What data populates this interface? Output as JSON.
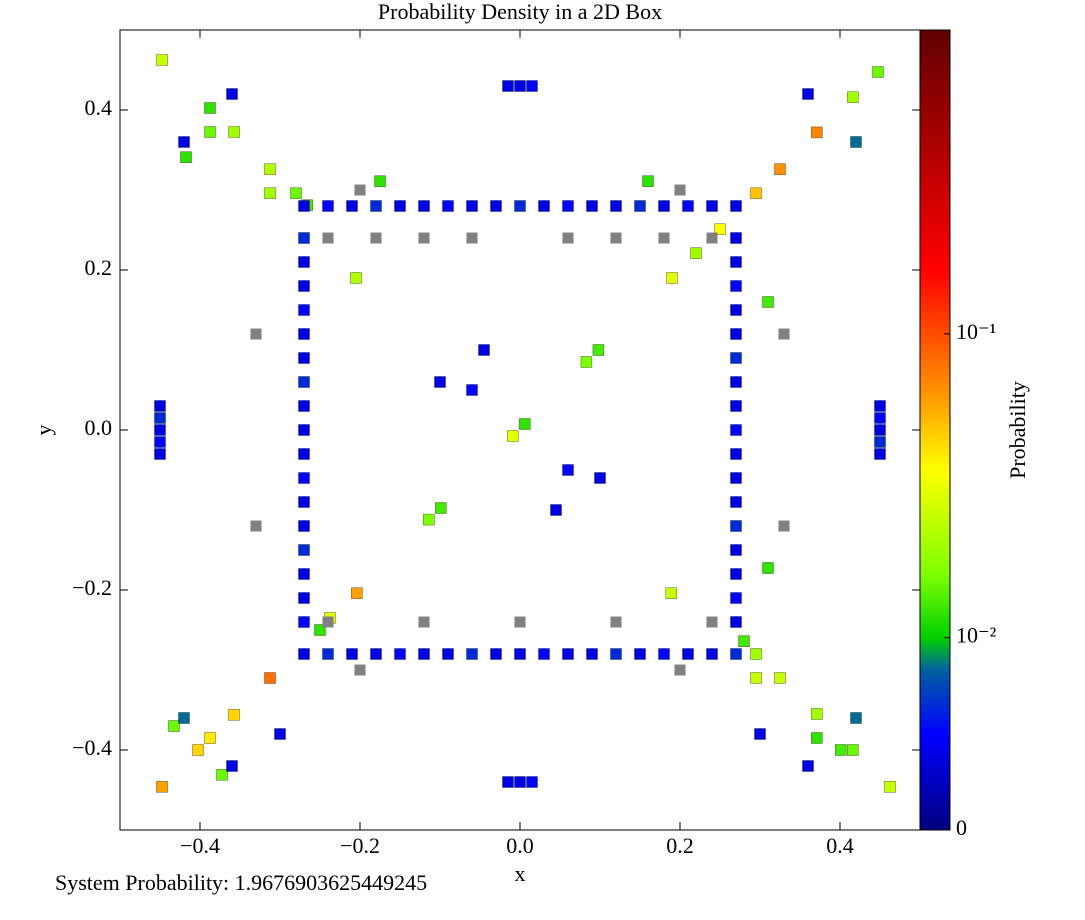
{
  "chart_data": {
    "type": "heatmap",
    "title": "Probability Density in a 2D Box",
    "xlabel": "x",
    "ylabel": "y",
    "colorbar_label": "Probability",
    "footer": "System Probability: 1.9676903625449245",
    "xlim": [
      -0.5,
      0.5
    ],
    "ylim": [
      -0.5,
      0.5
    ],
    "xticks": [
      {
        "value": -0.4,
        "label": "−0.4"
      },
      {
        "value": -0.2,
        "label": "−0.2"
      },
      {
        "value": 0,
        "label": "0.0"
      },
      {
        "value": 0.2,
        "label": "0.2"
      },
      {
        "value": 0.4,
        "label": "0.4"
      }
    ],
    "yticks": [
      {
        "value": -0.4,
        "label": "−0.4"
      },
      {
        "value": -0.2,
        "label": "−0.2"
      },
      {
        "value": 0,
        "label": "0.0"
      },
      {
        "value": 0.2,
        "label": "0.2"
      },
      {
        "value": 0.4,
        "label": "0.4"
      }
    ],
    "color_scale": "symlog",
    "linthresh": 0.0024,
    "clim": [
      0,
      1
    ],
    "cticks": [
      {
        "value": 0,
        "label": "0"
      },
      {
        "value": 0.01,
        "label": "10⁻²"
      },
      {
        "value": 0.1,
        "label": "10⁻¹"
      }
    ],
    "zero_color": "#808080",
    "colormap": [
      [
        0,
        "#000080"
      ],
      [
        0.12,
        "#0000ff"
      ],
      [
        0.2,
        "#0060a0"
      ],
      [
        0.24,
        "#00d000"
      ],
      [
        0.32,
        "#80ff00"
      ],
      [
        0.45,
        "#ffff00"
      ],
      [
        0.55,
        "#ff9000"
      ],
      [
        0.7,
        "#ff0000"
      ],
      [
        1,
        "#600000"
      ]
    ],
    "x": [
      -0.009,
      0.006,
      0.19,
      0.098,
      0.083,
      -0.099,
      -0.114,
      -0.204,
      -0.3125,
      0.325,
      0.371,
      0.295,
      0.25,
      -0.4475,
      -0.4025,
      -0.3575,
      -0.3875,
      -0.4475,
      -0.2375,
      -0.25,
      0.4475,
      0.416,
      -0.3875,
      -0.3125,
      -0.3125,
      -0.28,
      -0.266,
      0.16,
      0.22,
      0.31,
      0.31,
      0.189,
      0.28,
      0.295,
      0.325,
      0.295,
      0.371,
      0.371,
      0.401,
      0.416,
      0.4625,
      -0.4325,
      -0.3725,
      -0.4175,
      -0.3575,
      -0.3875,
      -0.205,
      -0.175,
      -0.27,
      -0.24,
      -0.21,
      -0.18,
      -0.15,
      -0.12,
      -0.09,
      -0.06,
      -0.03,
      0,
      0.03,
      0.06,
      0.09,
      0.12,
      0.15,
      0.18,
      0.21,
      0.24,
      0.27,
      -0.27,
      -0.24,
      -0.21,
      -0.18,
      -0.15,
      -0.12,
      -0.09,
      -0.06,
      -0.03,
      0,
      0.03,
      0.06,
      0.09,
      0.12,
      0.15,
      0.18,
      0.21,
      0.24,
      0.27,
      -0.27,
      -0.27,
      -0.27,
      -0.27,
      -0.27,
      -0.27,
      -0.27,
      -0.27,
      -0.27,
      -0.27,
      -0.27,
      -0.27,
      -0.27,
      -0.27,
      -0.27,
      -0.27,
      -0.27,
      0.27,
      0.27,
      0.27,
      0.27,
      0.27,
      0.27,
      0.27,
      0.27,
      0.27,
      0.27,
      0.27,
      0.27,
      0.27,
      0.27,
      0.27,
      0.27,
      0.27,
      -0.45,
      -0.45,
      -0.45,
      -0.45,
      -0.45,
      0.45,
      0.45,
      0.45,
      0.45,
      0.45,
      0,
      0.015,
      -0.015,
      0,
      0.015,
      -0.015,
      -0.42,
      -0.36,
      -0.3,
      0.3,
      0.36,
      0.42,
      -0.42,
      -0.36,
      0.36,
      0.42,
      -0.24,
      -0.18,
      -0.12,
      -0.06,
      0.06,
      0.12,
      0.18,
      0.24,
      -0.24,
      -0.12,
      0,
      0.12,
      0.24,
      -0.33,
      -0.33,
      0.33,
      0.33,
      -0.06,
      0.06,
      -0.045,
      0.045,
      -0.1,
      0.1,
      -0.2,
      0.2,
      -0.2,
      0.2
    ],
    "y": [
      -0.0075,
      0.0075,
      0.19,
      0.1,
      0.085,
      -0.0975,
      -0.112,
      -0.204,
      -0.31,
      0.326,
      0.372,
      0.296,
      0.251,
      -0.446,
      -0.4,
      -0.356,
      -0.385,
      0.4625,
      -0.235,
      -0.25,
      0.4475,
      0.416,
      0.4025,
      0.326,
      0.296,
      0.296,
      0.281,
      0.311,
      0.221,
      0.16,
      -0.1725,
      -0.204,
      -0.264,
      -0.28,
      -0.31,
      -0.31,
      -0.355,
      -0.385,
      -0.4,
      -0.4,
      -0.446,
      -0.37,
      -0.431,
      0.341,
      0.3725,
      0.3725,
      0.19,
      0.311,
      0.28,
      0.28,
      0.28,
      0.28,
      0.28,
      0.28,
      0.28,
      0.28,
      0.28,
      0.28,
      0.28,
      0.28,
      0.28,
      0.28,
      0.28,
      0.28,
      0.28,
      0.28,
      0.28,
      -0.28,
      -0.28,
      -0.28,
      -0.28,
      -0.28,
      -0.28,
      -0.28,
      -0.28,
      -0.28,
      -0.28,
      -0.28,
      -0.28,
      -0.28,
      -0.28,
      -0.28,
      -0.28,
      -0.28,
      -0.28,
      -0.28,
      -0.24,
      -0.21,
      -0.18,
      -0.15,
      -0.12,
      -0.09,
      -0.06,
      -0.03,
      0,
      0.03,
      0.06,
      0.09,
      0.12,
      0.15,
      0.18,
      0.21,
      0.24,
      -0.24,
      -0.21,
      -0.18,
      -0.15,
      -0.12,
      -0.09,
      -0.06,
      -0.03,
      0,
      0.03,
      0.06,
      0.09,
      0.12,
      0.15,
      0.18,
      0.21,
      0.24,
      -0.03,
      -0.015,
      0,
      0.015,
      0.03,
      -0.03,
      -0.015,
      0,
      0.015,
      0.03,
      0.43,
      0.43,
      0.43,
      -0.44,
      -0.44,
      -0.44,
      -0.36,
      -0.42,
      -0.38,
      -0.38,
      -0.42,
      -0.36,
      0.36,
      0.42,
      0.42,
      0.36,
      0.24,
      0.24,
      0.24,
      0.24,
      0.24,
      0.24,
      0.24,
      0.24,
      -0.24,
      -0.24,
      -0.24,
      -0.24,
      -0.24,
      0.12,
      -0.12,
      0.12,
      -0.12,
      0.05,
      -0.05,
      0.1,
      -0.1,
      0.06,
      -0.06,
      0.3,
      0.3,
      -0.3,
      -0.3
    ],
    "values": [
      0.03,
      0.012,
      0.03,
      0.013,
      0.016,
      0.013,
      0.016,
      0.06,
      0.08,
      0.065,
      0.07,
      0.05,
      0.035,
      0.06,
      0.045,
      0.045,
      0.04,
      0.025,
      0.03,
      0.012,
      0.015,
      0.02,
      0.012,
      0.022,
      0.02,
      0.015,
      0.013,
      0.012,
      0.02,
      0.013,
      0.012,
      0.025,
      0.013,
      0.02,
      0.025,
      0.025,
      0.02,
      0.012,
      0.013,
      0.015,
      0.025,
      0.015,
      0.015,
      0.012,
      0.02,
      0.015,
      0.022,
      0.012,
      0.004,
      0.005,
      0.004,
      0.006,
      0.004,
      0.004,
      0.005,
      0.004,
      0.004,
      0.006,
      0.004,
      0.005,
      0.004,
      0.004,
      0.006,
      0.004,
      0.005,
      0.004,
      0.004,
      0.004,
      0.006,
      0.004,
      0.004,
      0.005,
      0.004,
      0.004,
      0.006,
      0.004,
      0.004,
      0.005,
      0.004,
      0.004,
      0.006,
      0.004,
      0.005,
      0.004,
      0.004,
      0.006,
      0.005,
      0.004,
      0.004,
      0.006,
      0.004,
      0.004,
      0.005,
      0.004,
      0.004,
      0.004,
      0.006,
      0.004,
      0.004,
      0.005,
      0.004,
      0.004,
      0.006,
      0.004,
      0.005,
      0.004,
      0.004,
      0.006,
      0.004,
      0.004,
      0.004,
      0.005,
      0.004,
      0.004,
      0.006,
      0.004,
      0.004,
      0.005,
      0.004,
      0.004,
      0.004,
      0.005,
      0.004,
      0.006,
      0.004,
      0.004,
      0.006,
      0.004,
      0.005,
      0.004,
      0.004,
      0.005,
      0.004,
      0.004,
      0.005,
      0.004,
      0.008,
      0.004,
      0.004,
      0.004,
      0.004,
      0.008,
      0.004,
      0.004,
      0.004,
      0.008,
      0,
      0,
      0,
      0,
      0,
      0,
      0,
      0,
      0,
      0,
      0,
      0,
      0,
      0,
      0,
      0,
      0,
      0.005,
      0.005,
      0.004,
      0.004,
      0.004,
      0.004,
      0,
      0,
      0,
      0
    ]
  }
}
